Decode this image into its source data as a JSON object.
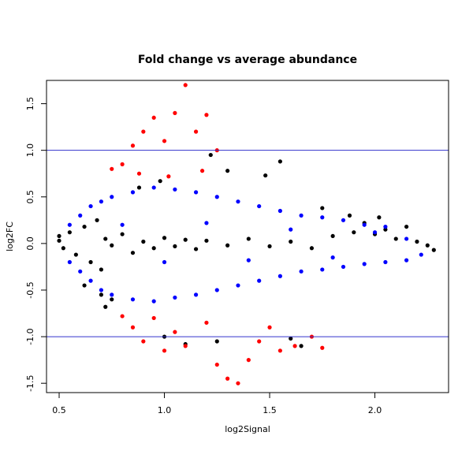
{
  "chart_data": {
    "type": "scatter",
    "title": "Fold change vs average abundance",
    "xlabel": "log2Signal",
    "ylabel": "log2FC",
    "xlim": [
      0.44,
      2.35
    ],
    "ylim": [
      -1.6,
      1.75
    ],
    "x_ticks": [
      0.5,
      1.0,
      1.5,
      2.0
    ],
    "x_tick_labels": [
      "0.5",
      "1.0",
      "1.5",
      "2.0"
    ],
    "y_ticks": [
      -1.5,
      -1.0,
      -0.5,
      0.0,
      0.5,
      1.0,
      1.5
    ],
    "y_tick_labels": [
      "-1.5",
      "-1.0",
      "-0.5",
      "0.0",
      "0.5",
      "1.0",
      "1.5"
    ],
    "grid": false,
    "reference_lines": [
      {
        "axis": "y",
        "value": 1.0,
        "color": "#3333cc"
      },
      {
        "axis": "y",
        "value": -1.0,
        "color": "#3333cc"
      }
    ],
    "series": [
      {
        "color": "#000000",
        "points": [
          [
            0.5,
            0.08
          ],
          [
            0.5,
            0.03
          ],
          [
            0.52,
            -0.05
          ],
          [
            0.55,
            0.12
          ],
          [
            0.58,
            -0.12
          ],
          [
            0.62,
            0.18
          ],
          [
            0.65,
            -0.2
          ],
          [
            0.68,
            0.25
          ],
          [
            0.7,
            -0.28
          ],
          [
            0.72,
            0.05
          ],
          [
            0.75,
            -0.02
          ],
          [
            0.8,
            0.1
          ],
          [
            0.85,
            -0.1
          ],
          [
            0.9,
            0.02
          ],
          [
            0.95,
            -0.05
          ],
          [
            1.0,
            0.06
          ],
          [
            1.05,
            -0.03
          ],
          [
            1.1,
            0.04
          ],
          [
            1.15,
            -0.06
          ],
          [
            1.2,
            0.03
          ],
          [
            1.3,
            -0.02
          ],
          [
            1.4,
            0.05
          ],
          [
            1.5,
            -0.03
          ],
          [
            1.6,
            0.02
          ],
          [
            1.7,
            -0.05
          ],
          [
            1.8,
            0.08
          ],
          [
            1.9,
            0.12
          ],
          [
            2.0,
            0.1
          ],
          [
            2.05,
            0.15
          ],
          [
            2.1,
            0.05
          ],
          [
            2.15,
            0.18
          ],
          [
            2.2,
            0.02
          ],
          [
            2.25,
            -0.02
          ],
          [
            2.28,
            -0.07
          ],
          [
            1.22,
            0.95
          ],
          [
            1.55,
            0.88
          ],
          [
            1.48,
            0.73
          ],
          [
            1.3,
            0.78
          ],
          [
            1.95,
            0.22
          ],
          [
            2.02,
            0.28
          ],
          [
            1.88,
            0.3
          ],
          [
            1.75,
            0.38
          ],
          [
            0.7,
            -0.55
          ],
          [
            0.75,
            -0.6
          ],
          [
            0.62,
            -0.45
          ],
          [
            1.0,
            -1.0
          ],
          [
            1.1,
            -1.08
          ],
          [
            1.25,
            -1.05
          ],
          [
            1.65,
            -1.1
          ],
          [
            1.6,
            -1.02
          ],
          [
            0.72,
            -0.68
          ],
          [
            0.98,
            0.67
          ],
          [
            0.88,
            0.6
          ]
        ]
      },
      {
        "color": "#0000ff",
        "points": [
          [
            0.55,
            0.2
          ],
          [
            0.6,
            0.3
          ],
          [
            0.65,
            0.4
          ],
          [
            0.7,
            0.45
          ],
          [
            0.75,
            0.5
          ],
          [
            0.85,
            0.55
          ],
          [
            0.95,
            0.6
          ],
          [
            1.05,
            0.58
          ],
          [
            1.15,
            0.55
          ],
          [
            1.25,
            0.5
          ],
          [
            1.35,
            0.45
          ],
          [
            1.45,
            0.4
          ],
          [
            1.55,
            0.35
          ],
          [
            1.65,
            0.3
          ],
          [
            1.75,
            0.28
          ],
          [
            1.85,
            0.25
          ],
          [
            1.95,
            0.2
          ],
          [
            2.05,
            0.18
          ],
          [
            2.15,
            0.05
          ],
          [
            0.55,
            -0.2
          ],
          [
            0.6,
            -0.3
          ],
          [
            0.65,
            -0.4
          ],
          [
            0.7,
            -0.5
          ],
          [
            0.75,
            -0.55
          ],
          [
            0.85,
            -0.6
          ],
          [
            0.95,
            -0.62
          ],
          [
            1.05,
            -0.58
          ],
          [
            1.15,
            -0.55
          ],
          [
            1.25,
            -0.5
          ],
          [
            1.35,
            -0.45
          ],
          [
            1.45,
            -0.4
          ],
          [
            1.55,
            -0.35
          ],
          [
            1.65,
            -0.3
          ],
          [
            1.75,
            -0.28
          ],
          [
            1.85,
            -0.25
          ],
          [
            1.95,
            -0.22
          ],
          [
            2.05,
            -0.2
          ],
          [
            2.15,
            -0.18
          ],
          [
            2.22,
            -0.12
          ],
          [
            0.8,
            0.2
          ],
          [
            1.0,
            -0.2
          ],
          [
            1.2,
            0.22
          ],
          [
            1.4,
            -0.18
          ],
          [
            1.6,
            0.15
          ],
          [
            1.8,
            -0.15
          ],
          [
            2.0,
            0.12
          ]
        ]
      },
      {
        "color": "#ff0000",
        "points": [
          [
            0.8,
            0.85
          ],
          [
            0.85,
            1.05
          ],
          [
            0.9,
            1.2
          ],
          [
            0.95,
            1.35
          ],
          [
            1.0,
            1.1
          ],
          [
            1.05,
            1.4
          ],
          [
            1.1,
            1.7
          ],
          [
            1.15,
            1.2
          ],
          [
            1.2,
            1.38
          ],
          [
            1.25,
            1.0
          ],
          [
            0.75,
            0.8
          ],
          [
            0.88,
            0.75
          ],
          [
            1.02,
            0.72
          ],
          [
            1.18,
            0.78
          ],
          [
            0.85,
            -0.9
          ],
          [
            0.9,
            -1.05
          ],
          [
            0.95,
            -0.8
          ],
          [
            1.0,
            -1.15
          ],
          [
            1.05,
            -0.95
          ],
          [
            1.1,
            -1.1
          ],
          [
            1.2,
            -0.85
          ],
          [
            1.25,
            -1.3
          ],
          [
            1.3,
            -1.45
          ],
          [
            1.35,
            -1.5
          ],
          [
            1.4,
            -1.25
          ],
          [
            1.45,
            -1.05
          ],
          [
            1.5,
            -0.9
          ],
          [
            1.55,
            -1.15
          ],
          [
            1.7,
            -1.0
          ],
          [
            1.75,
            -1.12
          ],
          [
            0.8,
            -0.78
          ],
          [
            1.62,
            -1.1
          ]
        ]
      }
    ]
  }
}
